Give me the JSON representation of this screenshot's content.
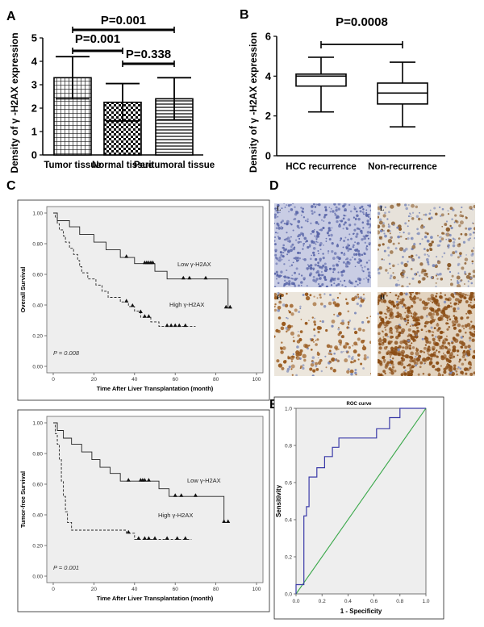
{
  "panels": {
    "A": "A",
    "B": "B",
    "C": "C",
    "D": "D",
    "E": "E"
  },
  "chart_data": [
    {
      "id": "A",
      "type": "bar",
      "ylabel": "Density of γ -H2AX expression",
      "ylim": [
        0,
        5
      ],
      "yticks": [
        0,
        1,
        2,
        3,
        4,
        5
      ],
      "categories": [
        "Tumor tissue",
        "Normal tissue",
        "Peritumoral tissue"
      ],
      "values": [
        3.3,
        2.25,
        2.4
      ],
      "errors": [
        0.9,
        0.8,
        0.9
      ],
      "patterns": [
        "grid",
        "checker",
        "hlines"
      ],
      "annotations": [
        {
          "text": "P=0.001",
          "from": 0,
          "to": 2
        },
        {
          "text": "P=0.001",
          "from": 0,
          "to": 1
        },
        {
          "text": "P=0.338",
          "from": 1,
          "to": 2
        }
      ]
    },
    {
      "id": "B",
      "type": "box",
      "ylabel": "Density of γ -H2AX expression",
      "ylim": [
        0,
        6
      ],
      "yticks": [
        0,
        2,
        4,
        6
      ],
      "categories": [
        "HCC recurrence",
        "Non-recurrence"
      ],
      "boxes": [
        {
          "min": 2.2,
          "q1": 3.5,
          "median": 4.0,
          "q3": 4.1,
          "max": 4.95
        },
        {
          "min": 1.45,
          "q1": 2.6,
          "median": 3.15,
          "q3": 3.65,
          "max": 4.7
        }
      ],
      "annotation": {
        "text": "P=0.0008"
      }
    },
    {
      "id": "C1",
      "type": "line",
      "ylabel": "Overall Survival",
      "xlabel": "Time After Liver Transplantation (month)",
      "xlim": [
        0,
        100
      ],
      "ylim": [
        0,
        1
      ],
      "xticks": [
        0,
        20,
        40,
        60,
        80,
        100
      ],
      "yticks": [
        "0.00",
        "0.20",
        "0.40",
        "0.60",
        "0.80",
        "1.00"
      ],
      "pvalue": "P = 0.008",
      "series": [
        {
          "name": "Low γ-H2AX",
          "style": "solid",
          "steps": [
            [
              0,
              1.0
            ],
            [
              2,
              0.95
            ],
            [
              8,
              0.91
            ],
            [
              13,
              0.86
            ],
            [
              20,
              0.81
            ],
            [
              26,
              0.76
            ],
            [
              33,
              0.71
            ],
            [
              40,
              0.67
            ],
            [
              50,
              0.62
            ],
            [
              56,
              0.57
            ],
            [
              86,
              0.38
            ],
            [
              88,
              0.38
            ]
          ],
          "censored": [
            [
              36,
              0.71
            ],
            [
              45,
              0.67
            ],
            [
              46,
              0.67
            ],
            [
              47,
              0.67
            ],
            [
              48,
              0.67
            ],
            [
              49,
              0.67
            ],
            [
              64,
              0.57
            ],
            [
              67,
              0.57
            ],
            [
              75,
              0.57
            ],
            [
              85,
              0.38
            ],
            [
              87,
              0.38
            ]
          ]
        },
        {
          "name": "High γ-H2AX",
          "style": "dashed",
          "steps": [
            [
              0,
              1.0
            ],
            [
              1,
              0.97
            ],
            [
              2,
              0.93
            ],
            [
              3,
              0.89
            ],
            [
              5,
              0.85
            ],
            [
              6,
              0.81
            ],
            [
              8,
              0.77
            ],
            [
              10,
              0.73
            ],
            [
              12,
              0.69
            ],
            [
              13,
              0.65
            ],
            [
              14,
              0.61
            ],
            [
              17,
              0.57
            ],
            [
              21,
              0.53
            ],
            [
              24,
              0.49
            ],
            [
              27,
              0.45
            ],
            [
              33,
              0.42
            ],
            [
              37,
              0.39
            ],
            [
              40,
              0.36
            ],
            [
              43,
              0.32
            ],
            [
              48,
              0.29
            ],
            [
              52,
              0.26
            ],
            [
              70,
              0.26
            ]
          ],
          "censored": [
            [
              36,
              0.42
            ],
            [
              39,
              0.39
            ],
            [
              43,
              0.35
            ],
            [
              45,
              0.32
            ],
            [
              47,
              0.32
            ],
            [
              56,
              0.26
            ],
            [
              58,
              0.26
            ],
            [
              60,
              0.26
            ],
            [
              62,
              0.26
            ],
            [
              65,
              0.26
            ]
          ]
        }
      ]
    },
    {
      "id": "C2",
      "type": "line",
      "ylabel": "Tumor-free Survival",
      "xlabel": "Time After Liver Transplantation (month)",
      "xlim": [
        0,
        100
      ],
      "ylim": [
        0,
        1
      ],
      "xticks": [
        0,
        20,
        40,
        60,
        80,
        100
      ],
      "yticks": [
        "0.00",
        "0.20",
        "0.40",
        "0.60",
        "0.80",
        "1.00"
      ],
      "pvalue": "P = 0.001",
      "series": [
        {
          "name": "Low γ-H2AX",
          "style": "solid",
          "steps": [
            [
              0,
              1.0
            ],
            [
              2,
              0.95
            ],
            [
              5,
              0.9
            ],
            [
              9,
              0.86
            ],
            [
              14,
              0.81
            ],
            [
              19,
              0.76
            ],
            [
              23,
              0.71
            ],
            [
              28,
              0.67
            ],
            [
              33,
              0.62
            ],
            [
              52,
              0.57
            ],
            [
              57,
              0.52
            ],
            [
              84,
              0.35
            ],
            [
              86,
              0.35
            ]
          ],
          "censored": [
            [
              37,
              0.62
            ],
            [
              43,
              0.62
            ],
            [
              44,
              0.62
            ],
            [
              45,
              0.62
            ],
            [
              47,
              0.62
            ],
            [
              60,
              0.52
            ],
            [
              63,
              0.52
            ],
            [
              70,
              0.52
            ],
            [
              84,
              0.35
            ],
            [
              86,
              0.35
            ]
          ]
        },
        {
          "name": "High γ-H2AX",
          "style": "dashed",
          "steps": [
            [
              0,
              1.0
            ],
            [
              1,
              0.93
            ],
            [
              2,
              0.86
            ],
            [
              3,
              0.76
            ],
            [
              4,
              0.62
            ],
            [
              5,
              0.52
            ],
            [
              6,
              0.42
            ],
            [
              7,
              0.35
            ],
            [
              9,
              0.3
            ],
            [
              22,
              0.3
            ],
            [
              36,
              0.28
            ],
            [
              40,
              0.24
            ],
            [
              68,
              0.24
            ]
          ],
          "censored": [
            [
              37,
              0.28
            ],
            [
              42,
              0.24
            ],
            [
              45,
              0.24
            ],
            [
              47,
              0.24
            ],
            [
              50,
              0.24
            ],
            [
              56,
              0.24
            ],
            [
              61,
              0.24
            ],
            [
              65,
              0.24
            ]
          ]
        }
      ]
    },
    {
      "id": "E",
      "type": "line",
      "title": "ROC curve",
      "xlabel": "1 - Specificity",
      "ylabel": "Sensitivity",
      "xlim": [
        0,
        1
      ],
      "ylim": [
        0,
        1
      ],
      "xticks": [
        "0.0",
        "0.2",
        "0.4",
        "0.6",
        "0.8",
        "1.0"
      ],
      "yticks": [
        "0.0",
        "0.2",
        "0.4",
        "0.6",
        "0.8",
        "1.0"
      ],
      "colors": {
        "roc": "#3a3aa8",
        "ref": "#3aa84a"
      },
      "series": [
        {
          "name": "roc",
          "points": [
            [
              0,
              0
            ],
            [
              0,
              0.05
            ],
            [
              0.06,
              0.05
            ],
            [
              0.06,
              0.42
            ],
            [
              0.08,
              0.42
            ],
            [
              0.08,
              0.47
            ],
            [
              0.1,
              0.47
            ],
            [
              0.1,
              0.63
            ],
            [
              0.16,
              0.63
            ],
            [
              0.16,
              0.68
            ],
            [
              0.22,
              0.68
            ],
            [
              0.22,
              0.74
            ],
            [
              0.28,
              0.74
            ],
            [
              0.28,
              0.79
            ],
            [
              0.33,
              0.79
            ],
            [
              0.33,
              0.84
            ],
            [
              0.62,
              0.84
            ],
            [
              0.62,
              0.89
            ],
            [
              0.72,
              0.89
            ],
            [
              0.72,
              0.95
            ],
            [
              0.8,
              0.95
            ],
            [
              0.8,
              1.0
            ],
            [
              1.0,
              1.0
            ]
          ]
        },
        {
          "name": "ref",
          "points": [
            [
              0,
              0
            ],
            [
              1,
              1
            ]
          ]
        }
      ]
    }
  ],
  "ihc": [
    {
      "tag": "L",
      "base": "#c9cde4",
      "dot": "#5a66a8",
      "brown": 0.0,
      "density": 1.0
    },
    {
      "tag": "L",
      "base": "#e7e2da",
      "dot": "#8a5a2a",
      "brown": 0.5,
      "density": 0.6
    },
    {
      "tag": "H",
      "base": "#ece6dc",
      "dot": "#9a5a1e",
      "brown": 0.75,
      "density": 0.5
    },
    {
      "tag": "H",
      "base": "#e2d3bf",
      "dot": "#8a4c14",
      "brown": 0.95,
      "density": 1.3
    }
  ]
}
